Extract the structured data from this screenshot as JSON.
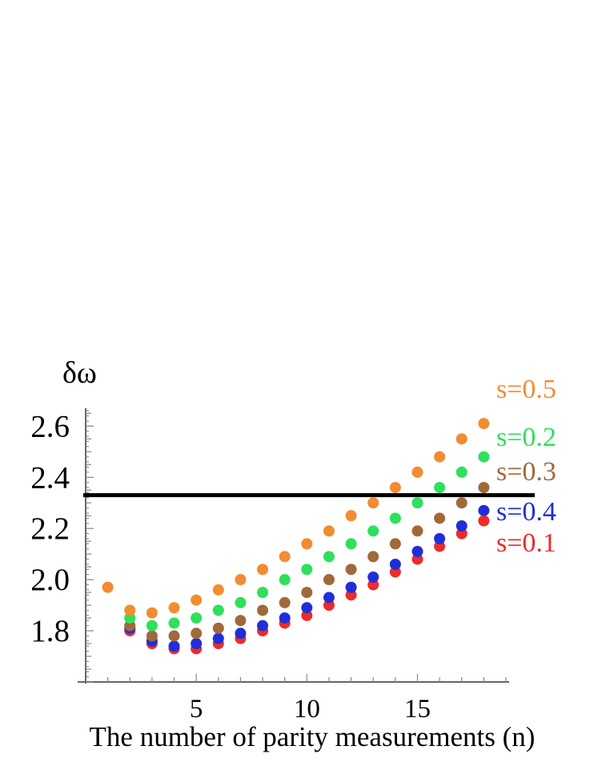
{
  "chart_data": {
    "type": "scatter",
    "title": "",
    "xlabel": "The number of parity measurements (n)",
    "ylabel": "δω",
    "xlim": [
      0,
      19
    ],
    "ylim": [
      1.6,
      2.67
    ],
    "x_ticks": [
      5,
      10,
      15
    ],
    "y_ticks": [
      1.8,
      2.0,
      2.2,
      2.4,
      2.6
    ],
    "y_tick_labels": [
      "1.8",
      "2.0",
      "2.2",
      "2.4",
      "2.6"
    ],
    "grid": false,
    "reference_line": {
      "y": 2.33,
      "color": "#000000"
    },
    "x": [
      1,
      2,
      3,
      4,
      5,
      6,
      7,
      8,
      9,
      10,
      11,
      12,
      13,
      14,
      15,
      16,
      17,
      18
    ],
    "series": [
      {
        "name": "s=0.5",
        "color": "#f28c30",
        "values": [
          1.97,
          1.88,
          1.87,
          1.89,
          1.92,
          1.96,
          2.0,
          2.04,
          2.09,
          2.14,
          2.19,
          2.25,
          2.3,
          2.36,
          2.42,
          2.48,
          2.55,
          2.61
        ]
      },
      {
        "name": "s=0.2",
        "color": "#2ee05a",
        "values": [
          null,
          1.85,
          1.82,
          1.83,
          1.85,
          1.88,
          1.91,
          1.95,
          2.0,
          2.04,
          2.09,
          2.14,
          2.19,
          2.24,
          2.3,
          2.36,
          2.42,
          2.48
        ]
      },
      {
        "name": "s=0.3",
        "color": "#a0693a",
        "values": [
          null,
          1.82,
          1.78,
          1.78,
          1.79,
          1.81,
          1.84,
          1.88,
          1.91,
          1.95,
          2.0,
          2.04,
          2.09,
          2.14,
          2.19,
          2.24,
          2.3,
          2.36
        ]
      },
      {
        "name": "s=0.4",
        "color": "#1f2fd8",
        "values": [
          null,
          1.81,
          1.76,
          1.74,
          1.75,
          1.77,
          1.79,
          1.82,
          1.85,
          1.89,
          1.93,
          1.97,
          2.01,
          2.06,
          2.11,
          2.16,
          2.21,
          2.27
        ]
      },
      {
        "name": "s=0.1",
        "color": "#ee2a2a",
        "values": [
          null,
          1.8,
          1.75,
          1.73,
          1.73,
          1.75,
          1.77,
          1.8,
          1.83,
          1.86,
          1.9,
          1.94,
          1.98,
          2.03,
          2.08,
          2.13,
          2.18,
          2.23
        ]
      }
    ],
    "legend": {
      "placement": "right",
      "entries": [
        {
          "label": "s=0.5",
          "color": "#f28c30"
        },
        {
          "label": "s=0.2",
          "color": "#2ee05a"
        },
        {
          "label": "s=0.3",
          "color": "#a0693a"
        },
        {
          "label": "s=0.4",
          "color": "#1f2fd8"
        },
        {
          "label": "s=0.1",
          "color": "#ee2a2a"
        }
      ]
    }
  }
}
